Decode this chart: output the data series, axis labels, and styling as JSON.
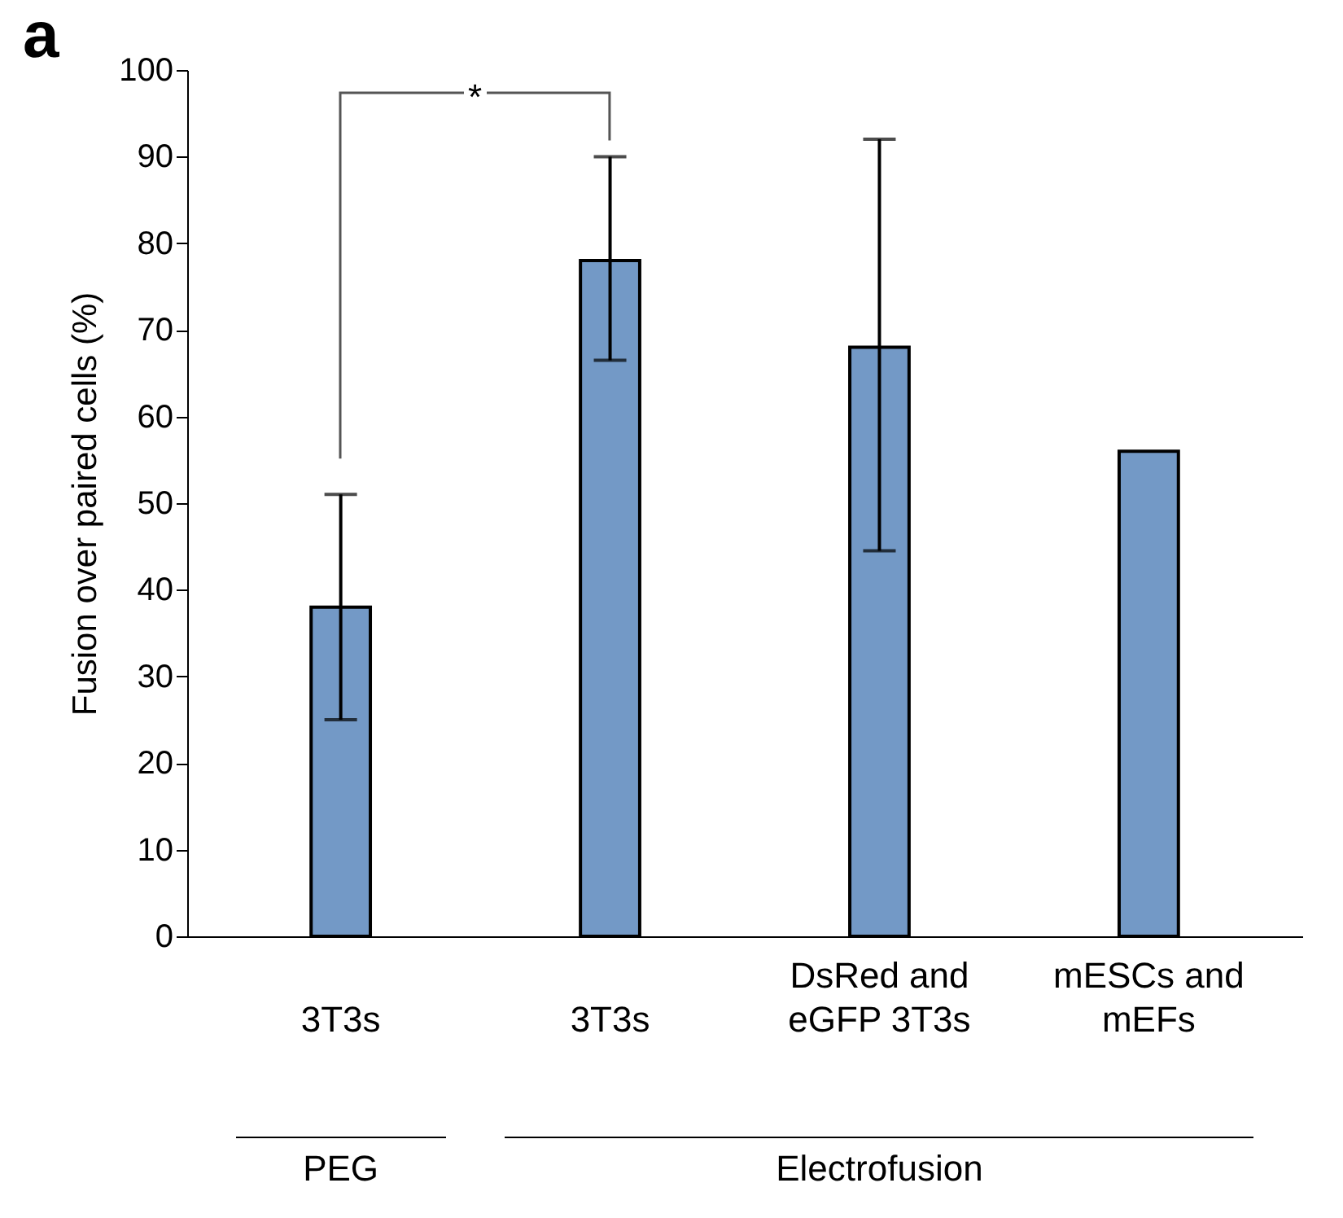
{
  "chart_data": {
    "type": "bar",
    "ylabel": "Fusion over paired cells (%)",
    "categories": [
      "3T3s",
      "3T3s",
      "DsRed and eGFP 3T3s",
      "mESCs and mEFs"
    ],
    "values": [
      38,
      78,
      68,
      56
    ],
    "color": "#7399c6",
    "errors": [
      [
        25,
        51
      ],
      [
        66.5,
        90
      ],
      [
        44.5,
        92
      ],
      null
    ],
    "ylim": [
      0,
      100
    ],
    "yticks": [
      0,
      10,
      20,
      30,
      40,
      50,
      60,
      70,
      80,
      90,
      100
    ],
    "grid": false,
    "annotations": [
      "a",
      "*",
      "PEG",
      "Electrofusion"
    ]
  }
}
